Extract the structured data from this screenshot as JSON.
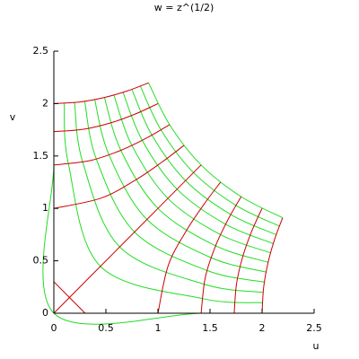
{
  "chart_data": {
    "type": "line",
    "title": "w = z^(1/2)",
    "x_label": "u",
    "y_label": "v",
    "xlim": [
      0,
      2.5
    ],
    "ylim": [
      0,
      2.5
    ],
    "xticks": [
      0,
      0.5,
      1,
      1.5,
      2,
      2.5
    ],
    "yticks": [
      0,
      0.5,
      1,
      1.5,
      2,
      2.5
    ],
    "series": [
      {
        "color": "#22dd22",
        "x": [
          0,
          0,
          0,
          1.4142,
          2
        ],
        "values": [
          2,
          1.4142,
          0,
          0,
          0
        ]
      },
      {
        "color": "#22dd22",
        "x": [
          0.0999,
          0.1407,
          0.4472,
          1.4212,
          2.0025
        ],
        "values": [
          2.0025,
          1.4212,
          0.4472,
          0.1407,
          0.0999
        ]
      },
      {
        "color": "#22dd22",
        "x": [
          0.199,
          0.2775,
          0.6325,
          1.4412,
          2.0099
        ],
        "values": [
          2.0099,
          1.4412,
          0.6325,
          0.2775,
          0.199
        ]
      },
      {
        "color": "#22dd22",
        "x": [
          0.2967,
          0.4077,
          0.7746,
          1.4718,
          2.0219
        ],
        "values": [
          2.0219,
          1.4718,
          0.7746,
          0.4077,
          0.2967
        ]
      },
      {
        "color": "#22dd22",
        "x": [
          0.3925,
          0.5297,
          0.8944,
          1.5102,
          2.0382
        ],
        "values": [
          2.0382,
          1.5102,
          0.8944,
          0.5297,
          0.3925
        ]
      },
      {
        "color": "#22dd22",
        "x": [
          0.4859,
          0.6436,
          1,
          1.5538,
          2.0582
        ],
        "values": [
          2.0582,
          1.5538,
          1,
          0.6436,
          0.4859
        ]
      },
      {
        "color": "#22dd22",
        "x": [
          0.5765,
          0.7497,
          1.0954,
          1.6006,
          2.0814
        ],
        "values": [
          2.0814,
          1.6006,
          1.0954,
          0.7497,
          0.5765
        ]
      },
      {
        "color": "#22dd22",
        "x": [
          0.6643,
          0.8488,
          1.1832,
          1.6494,
          2.1074
        ],
        "values": [
          2.1074,
          1.6494,
          1.1832,
          0.8488,
          0.6643
        ]
      },
      {
        "color": "#22dd22",
        "x": [
          0.7492,
          0.9417,
          1.2649,
          1.6991,
          2.1357
        ],
        "values": [
          2.1357,
          1.6991,
          1.2649,
          0.9417,
          0.7492
        ]
      },
      {
        "color": "#22dd22",
        "x": [
          0.8311,
          1.0292,
          1.3416,
          1.749,
          2.1658
        ],
        "values": [
          2.1658,
          1.749,
          1.3416,
          1.0292,
          0.8311
        ]
      },
      {
        "color": "#22dd22",
        "x": [
          0.9102,
          1.1118,
          1.4142,
          1.7989,
          2.1974
        ],
        "values": [
          2.1974,
          1.7989,
          1.4142,
          1.1118,
          0.9102
        ]
      },
      {
        "color": "#cc0000",
        "x": [
          0,
          0.2481,
          0.4859,
          0.7071,
          0.9102
        ],
        "values": [
          2,
          2.0153,
          2.0582,
          2.1213,
          2.1974
        ]
      },
      {
        "color": "#cc0000",
        "x": [
          0,
          0.2849,
          0.5503,
          0.7882,
          1
        ],
        "values": [
          1.7321,
          1.7553,
          1.8174,
          1.903,
          2
        ]
      },
      {
        "color": "#cc0000",
        "x": [
          0,
          0.3436,
          0.6436,
          0.896,
          1.1118
        ],
        "values": [
          1.4142,
          1.4553,
          1.5538,
          1.6742,
          1.7989
        ]
      },
      {
        "color": "#cc0000",
        "x": [
          0,
          0.4551,
          0.7862,
          1.0398,
          1.2496
        ],
        "values": [
          1,
          1.0987,
          1.272,
          1.4426,
          1.6005
        ]
      },
      {
        "color": "#cc0000",
        "x": [
          0,
          0.7071,
          1,
          1.2247,
          1.4142
        ],
        "values": [
          0,
          0.7071,
          1,
          1.2247,
          1.4142
        ]
      },
      {
        "color": "#cc0000",
        "x": [
          1,
          1.0987,
          1.272,
          1.4426,
          1.6005
        ],
        "values": [
          0,
          0.4551,
          0.7862,
          1.0398,
          1.2496
        ]
      },
      {
        "color": "#cc0000",
        "x": [
          1.4142,
          1.4553,
          1.5538,
          1.6742,
          1.7989
        ],
        "values": [
          0,
          0.3436,
          0.6436,
          0.896,
          1.1118
        ]
      },
      {
        "color": "#cc0000",
        "x": [
          1.7321,
          1.7553,
          1.8174,
          1.903,
          2
        ],
        "values": [
          0,
          0.2849,
          0.5503,
          0.7882,
          1
        ]
      },
      {
        "color": "#cc0000",
        "x": [
          2,
          2.0153,
          2.0582,
          2.1213,
          2.1974
        ],
        "values": [
          0,
          0.2481,
          0.4859,
          0.7071,
          0.9102
        ]
      },
      {
        "color": "#cc0000",
        "x": [
          0,
          0.3
        ],
        "values": [
          0.3,
          0
        ]
      }
    ]
  }
}
